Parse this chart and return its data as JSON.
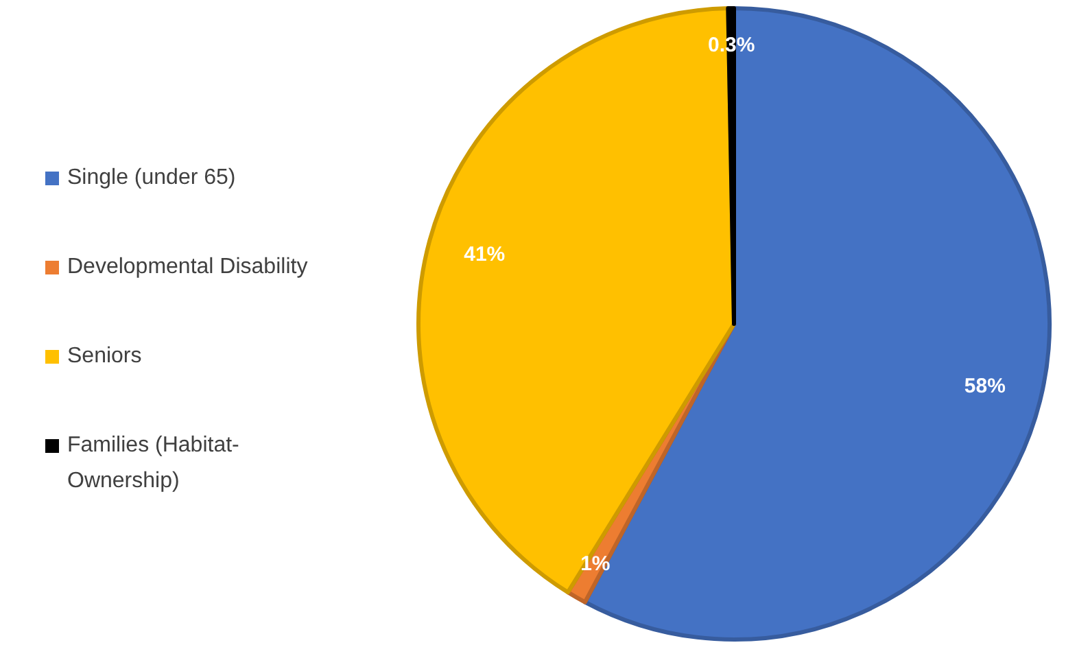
{
  "chart_data": {
    "type": "pie",
    "categories": [
      "Single (under 65)",
      "Developmental Disability",
      "Seniors",
      "Families (Habitat-Ownership)"
    ],
    "values": [
      58,
      1,
      41,
      0.3
    ],
    "colors": [
      "#4472c4",
      "#ed7d31",
      "#ffc000",
      "#000000"
    ],
    "value_labels": [
      "58%",
      "1%",
      "41%",
      "0.3%"
    ],
    "legend": "left"
  }
}
